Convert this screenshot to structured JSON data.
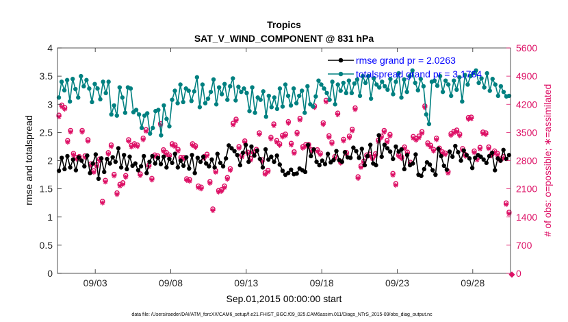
{
  "chart_data": {
    "type": "line",
    "title": "Tropics",
    "subtitle": "SAT_V_WIND_COMPONENT @ 831 hPa",
    "xlabel": "Sep.01,2015 00:00:00 start",
    "ylabel_left": "rmse and totalspread",
    "ylabel_right": "# of obs: o=possible; ∗=assimilated",
    "footer": "data file: /Users/raeder/DAI/ATM_forcXX/CAM6_setup/f.e21.FHIST_BGC.f09_025.CAM6assim.011/Diags_NTrS_2015-09/obs_diag_output.nc",
    "x_axis": {
      "range": [
        0.5,
        30.5
      ],
      "tick_positions": [
        3,
        8,
        13,
        18,
        23,
        28
      ],
      "tick_labels": [
        "09/03",
        "09/08",
        "09/13",
        "09/18",
        "09/23",
        "09/28"
      ]
    },
    "ylim_left": [
      0,
      4
    ],
    "yticks_left": [
      "0",
      "0.5",
      "1",
      "1.5",
      "2",
      "2.5",
      "3",
      "3.5",
      "4"
    ],
    "ylim_right": [
      0,
      5600
    ],
    "yticks_right": [
      "0",
      "700",
      "1400",
      "2100",
      "2800",
      "3500",
      "4200",
      "4900",
      "5600"
    ],
    "colors": {
      "rmse": "#000000",
      "spread": "#008080",
      "obs": "#dd1166",
      "legend_text": "#0000ff"
    },
    "legend": [
      "rmse grand pr = 2.0263",
      "totalspread grand pr = 3.1764"
    ],
    "series": [
      {
        "name": "rmse",
        "axis": "left",
        "values": [
          1.82,
          2.05,
          1.85,
          2.08,
          1.88,
          2.02,
          1.83,
          2.06,
          2.0,
          1.9,
          2.09,
          1.78,
          1.95,
          2.11,
          1.68,
          2.04,
          1.8,
          2.03,
          1.95,
          2.06,
          1.98,
          2.22,
          1.88,
          2.1,
          1.85,
          2.07,
          1.91,
          1.95,
          1.83,
          1.9,
          2.08,
          1.78,
          1.98,
          2.08,
          1.95,
          2.05,
          1.94,
          2.07,
          1.88,
          2.03,
          1.96,
          2.12,
          1.88,
          2.0,
          1.91,
          2.06,
          1.86,
          2.1,
          1.78,
          2.05,
          1.98,
          2.07,
          1.95,
          1.9,
          2.02,
          1.88,
          2.12,
          1.96,
          1.9,
          2.04,
          2.27,
          2.22,
          2.17,
          2.1,
          1.92,
          2.14,
          2.28,
          1.98,
          2.25,
          2.09,
          2.18,
          2.03,
          1.88,
          2.2,
          2.02,
          2.07,
          1.98,
          2.09,
          1.93,
          1.82,
          1.75,
          1.78,
          1.84,
          1.76,
          1.77,
          1.86,
          1.83,
          1.8,
          2.28,
          2.08,
          2.2,
          1.98,
          1.92,
          2.0,
          1.94,
          2.12,
          1.97,
          2.01,
          2.17,
          2.01,
          1.98,
          2.15,
          2.06,
          2.05,
          2.23,
          2.17,
          2.05,
          2.21,
          1.92,
          2.08,
          2.28,
          1.95,
          1.92,
          2.45,
          2.07,
          2.28,
          2.22,
          2.16,
          2.03,
          2.25,
          2.16,
          2.2,
          1.85,
          2.1,
          1.92,
          1.95,
          2.11,
          1.75,
          1.73,
          1.85,
          1.97,
          1.93,
          1.83,
          1.75,
          2.21,
          2.08,
          1.91,
          1.84,
          2.16,
          2.07,
          2.26,
          2.15,
          2.0,
          2.18,
          2.1,
          2.04,
          1.87,
          2.05,
          2.1,
          2.07,
          2.02,
          1.96,
          2.08,
          2.14,
          1.83,
          2.04,
          2.0,
          2.19,
          2.03,
          2.1
        ]
      },
      {
        "name": "totalspread",
        "axis": "left",
        "values": [
          3.12,
          3.4,
          3.25,
          3.43,
          3.05,
          3.45,
          3.27,
          3.12,
          3.5,
          3.32,
          3.43,
          3.28,
          3.04,
          3.36,
          3.28,
          3.09,
          3.4,
          3.2,
          3.4,
          2.82,
          2.98,
          2.8,
          3.3,
          3.12,
          2.85,
          3.3,
          3.28,
          2.86,
          2.9,
          2.82,
          2.58,
          2.8,
          2.84,
          2.48,
          2.58,
          2.88,
          2.9,
          2.45,
          2.98,
          2.74,
          2.61,
          3.08,
          3.24,
          3.02,
          3.35,
          3.04,
          3.28,
          3.24,
          3.06,
          3.23,
          3.48,
          2.95,
          3.35,
          3.02,
          3.1,
          3.22,
          3.44,
          3.0,
          3.3,
          3.18,
          3.36,
          3.08,
          3.32,
          3.46,
          3.07,
          3.31,
          3.22,
          3.28,
          3.2,
          2.88,
          3.3,
          2.85,
          3.12,
          3.08,
          3.23,
          2.78,
          3.15,
          2.95,
          3.12,
          2.92,
          3.28,
          2.96,
          3.35,
          3.15,
          2.98,
          3.28,
          3.02,
          3.15,
          3.24,
          2.85,
          3.32,
          3.0,
          2.96,
          3.14,
          3.42,
          3.35,
          3.28,
          3.2,
          3.08,
          3.4,
          3.0,
          3.35,
          3.24,
          3.38,
          3.2,
          3.42,
          3.2,
          3.37,
          3.44,
          3.15,
          3.5,
          3.38,
          3.5,
          3.1,
          3.46,
          3.35,
          3.3,
          3.4,
          3.32,
          3.26,
          3.45,
          3.18,
          3.4,
          3.55,
          3.12,
          3.44,
          3.22,
          3.5,
          3.6,
          3.38,
          3.25,
          3.45,
          3.32,
          2.82,
          2.65,
          3.4,
          3.42,
          3.33,
          3.5,
          3.22,
          3.42,
          3.35,
          3.15,
          3.42,
          3.26,
          3.48,
          3.05,
          3.52,
          3.35,
          3.5,
          3.55,
          3.6,
          3.38,
          3.46,
          3.3,
          3.55,
          3.24,
          3.45,
          3.35,
          3.15,
          3.32,
          3.22,
          3.14,
          3.15
        ]
      },
      {
        "name": "obs possible",
        "axis": "right",
        "values": [
          3930,
          4180,
          4120,
          3300,
          3550,
          2980,
          2880,
          2900,
          3550,
          2920,
          3320,
          2720,
          2550,
          2700,
          2840,
          1790,
          2310,
          3000,
          3190,
          2460,
          2000,
          2210,
          2250,
          2430,
          3320,
          3180,
          3220,
          3190,
          2470,
          3360,
          3570,
          2690,
          2360,
          2940,
          2920,
          3720,
          3070,
          3000,
          2940,
          3220,
          3190,
          3080,
          2880,
          2880,
          2350,
          2330,
          3220,
          3170,
          2170,
          2140,
          2900,
          2960,
          2280,
          1600,
          2550,
          2060,
          2080,
          2170,
          2380,
          2600,
          3730,
          3830,
          3150,
          2930,
          3290,
          3010,
          2850,
          3010,
          3080,
          3490,
          2820,
          2500,
          2560,
          3380,
          3710,
          3300,
          3220,
          3430,
          3460,
          3770,
          3230,
          3020,
          3500,
          3850,
          3150,
          3200,
          3200,
          3070,
          4160,
          3070,
          2990,
          3740,
          4300,
          3420,
          3260,
          2900,
          3980,
          2780,
          3330,
          3000,
          3410,
          3580,
          4110,
          2400,
          2670,
          2790,
          2940,
          2960,
          2880,
          2970,
          3310,
          3410,
          3550,
          3300,
          3450,
          2480,
          2230,
          2950,
          2890,
          3140,
          3010,
          2760,
          3400,
          3350,
          3410,
          3520,
          4160,
          3240,
          3180,
          3080,
          3360,
          3110,
          3020,
          2990,
          2530,
          3470,
          3530,
          3560,
          3460,
          3100,
          2950,
          3870,
          3880,
          3040,
          2860,
          3130,
          3510,
          3490,
          3140,
          2960,
          3040,
          2980,
          2840,
          2900,
          1750,
          1520
        ]
      },
      {
        "name": "obs assimilated",
        "axis": "right",
        "values": [
          3890,
          4140,
          4080,
          3260,
          3510,
          2940,
          2840,
          2860,
          3510,
          2880,
          3280,
          2680,
          2510,
          2660,
          2800,
          1750,
          2270,
          2960,
          3150,
          2420,
          1960,
          2170,
          2210,
          2390,
          3280,
          3140,
          3180,
          3150,
          2430,
          3320,
          3530,
          2650,
          2320,
          2900,
          2880,
          3680,
          3030,
          2960,
          2900,
          3180,
          3150,
          3040,
          2840,
          2840,
          2310,
          2290,
          3180,
          3130,
          2130,
          2100,
          2860,
          2920,
          2240,
          1560,
          2510,
          2020,
          2040,
          2130,
          2340,
          2560,
          3690,
          3790,
          3110,
          2890,
          3250,
          2970,
          2810,
          2970,
          3040,
          3450,
          2780,
          2460,
          2520,
          3340,
          3670,
          3260,
          3180,
          3390,
          3420,
          3730,
          3190,
          2980,
          3460,
          3810,
          3110,
          3160,
          3160,
          3030,
          4120,
          3030,
          2950,
          3700,
          4260,
          3380,
          3220,
          2860,
          3940,
          2740,
          3290,
          2960,
          3370,
          3540,
          4070,
          2360,
          2630,
          2750,
          2900,
          2920,
          2840,
          2930,
          3270,
          3370,
          3510,
          3260,
          3410,
          2440,
          2190,
          2910,
          2850,
          3100,
          2970,
          2720,
          3360,
          3310,
          3370,
          3480,
          4120,
          3200,
          3140,
          3040,
          3320,
          3070,
          2980,
          2950,
          2490,
          3430,
          3490,
          3520,
          3420,
          3060,
          2910,
          3830,
          3840,
          3000,
          2820,
          3090,
          3470,
          3450,
          3100,
          2920,
          3000,
          2940,
          2800,
          2860,
          1710,
          1480
        ]
      }
    ]
  }
}
